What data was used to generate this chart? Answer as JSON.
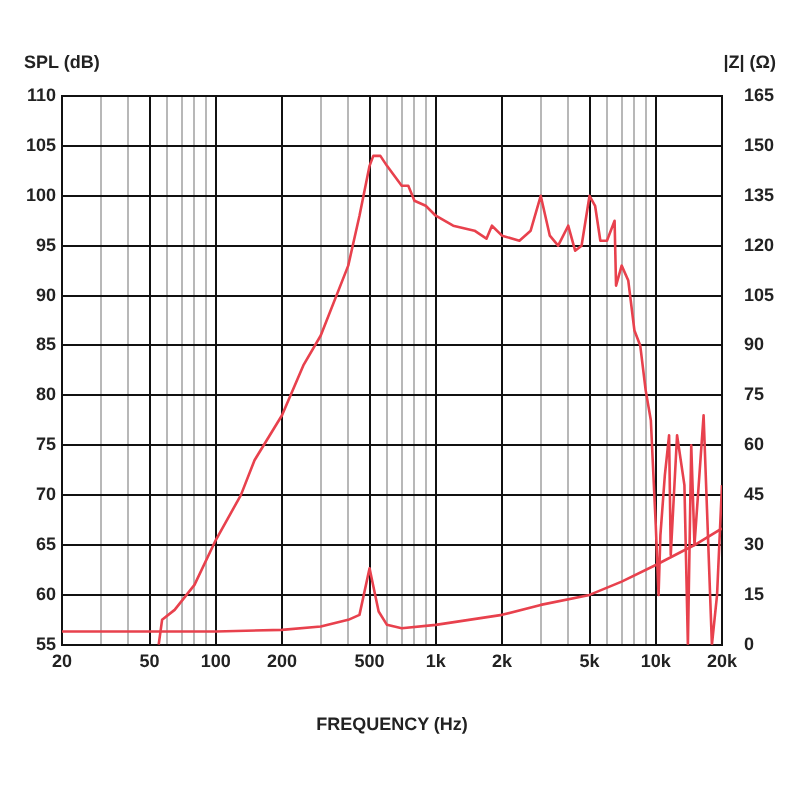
{
  "chart_data": {
    "type": "line",
    "xlabel": "FREQUENCY (Hz)",
    "ylabel": "SPL (dB)",
    "y2label": "|Z| (Ω)",
    "xlim": [
      20,
      20000
    ],
    "xticks": [
      20,
      {
        "value": 30,
        "label": null
      },
      {
        "value": 40,
        "label": null
      },
      50,
      {
        "value": 60,
        "label": null
      },
      {
        "value": 70,
        "label": null
      },
      {
        "value": 80,
        "label": null
      },
      {
        "value": 90,
        "label": null
      },
      100,
      200,
      {
        "value": 300,
        "label": null
      },
      {
        "value": 400,
        "label": null
      },
      500,
      {
        "value": 600,
        "label": null
      },
      {
        "value": 700,
        "label": null
      },
      {
        "value": 800,
        "label": null
      },
      {
        "value": 900,
        "label": null
      },
      {
        "value": 1000,
        "label": "1k"
      },
      {
        "value": 2000,
        "label": "2k"
      },
      {
        "value": 3000,
        "label": null
      },
      {
        "value": 4000,
        "label": null
      },
      {
        "value": 5000,
        "label": "5k"
      },
      {
        "value": 6000,
        "label": null
      },
      {
        "value": 7000,
        "label": null
      },
      {
        "value": 8000,
        "label": null
      },
      {
        "value": 9000,
        "label": null
      },
      {
        "value": 10000,
        "label": "10k"
      },
      {
        "value": 20000,
        "label": "20k"
      }
    ],
    "ylim": [
      55,
      110
    ],
    "yticks": [
      55,
      60,
      65,
      70,
      75,
      80,
      85,
      90,
      95,
      100,
      105,
      110
    ],
    "y2lim": [
      0,
      165
    ],
    "y2ticks": [
      0,
      15,
      30,
      45,
      60,
      75,
      90,
      105,
      120,
      135,
      150,
      165
    ],
    "grid": true,
    "legend": false,
    "marker": "none",
    "line_style": "solid",
    "log": "x",
    "series": [
      {
        "color": "#e8414d",
        "x": [
          55,
          57,
          65,
          80,
          100,
          130,
          150,
          200,
          250,
          300,
          400,
          450,
          500,
          520,
          560,
          600,
          700,
          750,
          800,
          900,
          1000,
          1200,
          1500,
          1700,
          1800,
          2000,
          2400,
          2700,
          3000,
          3300,
          3600,
          4000,
          4300,
          4600,
          5000,
          5300,
          5600,
          6000,
          6500,
          6600,
          7000,
          7500,
          8000,
          8500,
          9000,
          9500,
          10000,
          10300,
          10500,
          11000,
          11500,
          11700,
          12500,
          13500,
          14000,
          14500,
          15000,
          16500,
          18000,
          19000,
          20000
        ],
        "values": [
          55,
          57.5,
          58.5,
          61,
          65.5,
          70,
          73.5,
          78,
          83,
          86,
          93,
          98,
          103,
          104,
          104,
          103,
          101,
          101,
          99.5,
          99,
          98,
          97,
          96.5,
          95.7,
          97,
          96,
          95.5,
          96.5,
          100,
          96,
          95,
          97,
          94.5,
          95,
          100,
          99,
          95.5,
          95.5,
          97.5,
          91,
          93,
          91.5,
          86.5,
          85,
          80.5,
          77.5,
          67,
          60,
          66,
          72,
          76,
          64,
          76,
          71,
          55,
          75,
          65,
          78,
          55,
          60,
          71
        ]
      },
      {
        "color": "#e8414d",
        "axis": "y2",
        "x": [
          20,
          50,
          100,
          200,
          300,
          400,
          450,
          500,
          550,
          600,
          700,
          1000,
          2000,
          3000,
          5000,
          7000,
          10000,
          15000,
          20000
        ],
        "values": [
          4,
          4,
          4,
          4.5,
          5.5,
          7.5,
          9,
          23,
          10,
          6,
          5,
          6,
          9,
          12,
          15,
          19,
          24,
          30,
          35
        ]
      }
    ]
  }
}
